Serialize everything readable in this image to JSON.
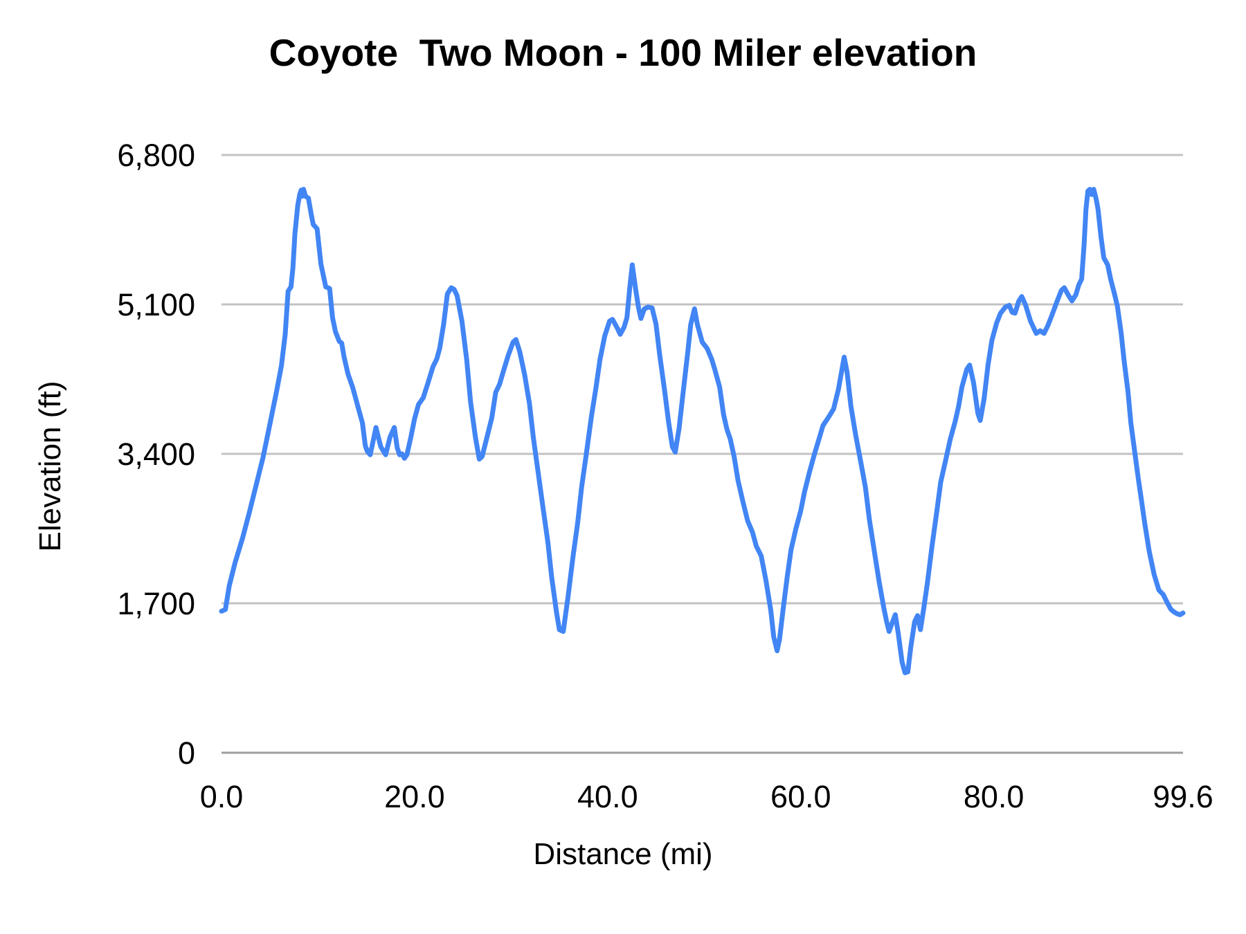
{
  "chart": {
    "colors": {
      "line": "#4285f4",
      "gridline": "#c2c2c2",
      "baseline": "#9e9e9e",
      "text": "#000000",
      "background": "#ffffff"
    }
  },
  "chart_data": {
    "type": "line",
    "title": "Coyote  Two Moon - 100 Miler elevation",
    "xlabel": "Distance (mi)",
    "ylabel": "Elevation (ft)",
    "xlim": [
      0,
      99.6
    ],
    "ylim": [
      0,
      6800
    ],
    "grid": "horizontal",
    "legend": "none",
    "x_ticks": [
      0,
      20,
      40,
      60,
      80,
      99.6
    ],
    "x_tick_labels": [
      "0.0",
      "20.0",
      "40.0",
      "60.0",
      "80.0",
      "99.6"
    ],
    "y_ticks": [
      0,
      1700,
      3400,
      5100,
      6800
    ],
    "y_tick_labels": [
      "0",
      "1,700",
      "3,400",
      "5,100",
      "6,800"
    ],
    "series": [
      {
        "name": "Elevation",
        "color": "#4285f4",
        "points": [
          [
            0,
            1610
          ],
          [
            0.4,
            1630
          ],
          [
            0.8,
            1900
          ],
          [
            1.4,
            2160
          ],
          [
            2.2,
            2450
          ],
          [
            2.9,
            2740
          ],
          [
            3.6,
            3050
          ],
          [
            4.3,
            3360
          ],
          [
            5.0,
            3730
          ],
          [
            5.7,
            4110
          ],
          [
            6.2,
            4400
          ],
          [
            6.6,
            4760
          ],
          [
            6.9,
            5250
          ],
          [
            7.2,
            5300
          ],
          [
            7.4,
            5520
          ],
          [
            7.6,
            5900
          ],
          [
            7.9,
            6230
          ],
          [
            8.1,
            6350
          ],
          [
            8.25,
            6400
          ],
          [
            8.35,
            6330
          ],
          [
            8.5,
            6410
          ],
          [
            8.7,
            6330
          ],
          [
            9.0,
            6310
          ],
          [
            9.3,
            6120
          ],
          [
            9.5,
            6010
          ],
          [
            9.9,
            5960
          ],
          [
            10.3,
            5560
          ],
          [
            10.8,
            5300
          ],
          [
            11.2,
            5280
          ],
          [
            11.5,
            4950
          ],
          [
            11.8,
            4790
          ],
          [
            12.2,
            4680
          ],
          [
            12.45,
            4660
          ],
          [
            12.7,
            4500
          ],
          [
            13.1,
            4310
          ],
          [
            13.6,
            4150
          ],
          [
            14.1,
            3950
          ],
          [
            14.6,
            3750
          ],
          [
            14.9,
            3490
          ],
          [
            15.1,
            3430
          ],
          [
            15.4,
            3390
          ],
          [
            15.7,
            3540
          ],
          [
            16.0,
            3700
          ],
          [
            16.5,
            3480
          ],
          [
            17.0,
            3390
          ],
          [
            17.45,
            3590
          ],
          [
            17.9,
            3700
          ],
          [
            18.2,
            3470
          ],
          [
            18.45,
            3390
          ],
          [
            18.7,
            3400
          ],
          [
            18.95,
            3350
          ],
          [
            19.2,
            3390
          ],
          [
            19.6,
            3580
          ],
          [
            20.0,
            3800
          ],
          [
            20.4,
            3960
          ],
          [
            20.9,
            4040
          ],
          [
            21.4,
            4210
          ],
          [
            21.9,
            4390
          ],
          [
            22.3,
            4480
          ],
          [
            22.6,
            4600
          ],
          [
            23.0,
            4870
          ],
          [
            23.4,
            5220
          ],
          [
            23.8,
            5290
          ],
          [
            24.1,
            5270
          ],
          [
            24.4,
            5200
          ],
          [
            24.9,
            4910
          ],
          [
            25.4,
            4470
          ],
          [
            25.8,
            3990
          ],
          [
            26.3,
            3590
          ],
          [
            26.7,
            3340
          ],
          [
            27.0,
            3370
          ],
          [
            27.5,
            3590
          ],
          [
            28.0,
            3810
          ],
          [
            28.4,
            4100
          ],
          [
            28.8,
            4190
          ],
          [
            29.2,
            4340
          ],
          [
            29.7,
            4520
          ],
          [
            30.2,
            4670
          ],
          [
            30.5,
            4700
          ],
          [
            30.9,
            4560
          ],
          [
            31.4,
            4300
          ],
          [
            31.9,
            3970
          ],
          [
            32.3,
            3590
          ],
          [
            32.8,
            3190
          ],
          [
            33.3,
            2790
          ],
          [
            33.8,
            2400
          ],
          [
            34.2,
            2000
          ],
          [
            34.7,
            1600
          ],
          [
            35.0,
            1400
          ],
          [
            35.4,
            1380
          ],
          [
            35.9,
            1780
          ],
          [
            36.4,
            2220
          ],
          [
            36.9,
            2620
          ],
          [
            37.3,
            3020
          ],
          [
            37.8,
            3410
          ],
          [
            38.3,
            3810
          ],
          [
            38.8,
            4160
          ],
          [
            39.2,
            4470
          ],
          [
            39.7,
            4740
          ],
          [
            40.2,
            4910
          ],
          [
            40.5,
            4930
          ],
          [
            41.0,
            4830
          ],
          [
            41.3,
            4760
          ],
          [
            41.7,
            4840
          ],
          [
            42.0,
            4950
          ],
          [
            42.3,
            5300
          ],
          [
            42.55,
            5550
          ],
          [
            42.9,
            5270
          ],
          [
            43.2,
            5060
          ],
          [
            43.45,
            4940
          ],
          [
            43.8,
            5050
          ],
          [
            44.2,
            5070
          ],
          [
            44.6,
            5060
          ],
          [
            45.0,
            4880
          ],
          [
            45.4,
            4520
          ],
          [
            45.9,
            4120
          ],
          [
            46.3,
            3770
          ],
          [
            46.7,
            3480
          ],
          [
            47.0,
            3420
          ],
          [
            47.4,
            3690
          ],
          [
            47.8,
            4080
          ],
          [
            48.3,
            4560
          ],
          [
            48.6,
            4870
          ],
          [
            49.0,
            5050
          ],
          [
            49.3,
            4870
          ],
          [
            49.8,
            4670
          ],
          [
            50.3,
            4600
          ],
          [
            50.8,
            4470
          ],
          [
            51.1,
            4360
          ],
          [
            51.6,
            4160
          ],
          [
            52.0,
            3850
          ],
          [
            52.35,
            3680
          ],
          [
            52.7,
            3570
          ],
          [
            53.1,
            3370
          ],
          [
            53.5,
            3100
          ],
          [
            54.0,
            2860
          ],
          [
            54.5,
            2640
          ],
          [
            55.0,
            2510
          ],
          [
            55.4,
            2350
          ],
          [
            55.9,
            2240
          ],
          [
            56.4,
            1960
          ],
          [
            56.9,
            1620
          ],
          [
            57.2,
            1320
          ],
          [
            57.55,
            1160
          ],
          [
            57.8,
            1290
          ],
          [
            58.2,
            1650
          ],
          [
            58.6,
            2000
          ],
          [
            59.0,
            2310
          ],
          [
            59.5,
            2550
          ],
          [
            60.0,
            2750
          ],
          [
            60.4,
            2970
          ],
          [
            60.9,
            3190
          ],
          [
            61.4,
            3390
          ],
          [
            61.9,
            3570
          ],
          [
            62.3,
            3720
          ],
          [
            62.9,
            3820
          ],
          [
            63.4,
            3910
          ],
          [
            63.9,
            4130
          ],
          [
            64.5,
            4500
          ],
          [
            64.8,
            4330
          ],
          [
            65.2,
            3940
          ],
          [
            65.7,
            3610
          ],
          [
            66.2,
            3320
          ],
          [
            66.7,
            3020
          ],
          [
            67.1,
            2660
          ],
          [
            67.6,
            2310
          ],
          [
            68.1,
            1960
          ],
          [
            68.6,
            1650
          ],
          [
            68.9,
            1490
          ],
          [
            69.15,
            1380
          ],
          [
            69.45,
            1470
          ],
          [
            69.8,
            1570
          ],
          [
            70.1,
            1360
          ],
          [
            70.5,
            1030
          ],
          [
            70.8,
            910
          ],
          [
            71.1,
            920
          ],
          [
            71.4,
            1200
          ],
          [
            71.8,
            1490
          ],
          [
            72.1,
            1560
          ],
          [
            72.4,
            1400
          ],
          [
            72.75,
            1650
          ],
          [
            73.1,
            1910
          ],
          [
            73.6,
            2350
          ],
          [
            74.1,
            2750
          ],
          [
            74.5,
            3080
          ],
          [
            75.0,
            3320
          ],
          [
            75.5,
            3570
          ],
          [
            76.0,
            3770
          ],
          [
            76.35,
            3940
          ],
          [
            76.7,
            4160
          ],
          [
            77.2,
            4360
          ],
          [
            77.5,
            4410
          ],
          [
            77.9,
            4210
          ],
          [
            78.35,
            3860
          ],
          [
            78.6,
            3780
          ],
          [
            79.0,
            4030
          ],
          [
            79.4,
            4410
          ],
          [
            79.8,
            4690
          ],
          [
            80.3,
            4890
          ],
          [
            80.7,
            5000
          ],
          [
            81.2,
            5070
          ],
          [
            81.6,
            5090
          ],
          [
            81.9,
            5010
          ],
          [
            82.2,
            5000
          ],
          [
            82.6,
            5140
          ],
          [
            82.9,
            5190
          ],
          [
            83.3,
            5090
          ],
          [
            83.8,
            4910
          ],
          [
            84.4,
            4770
          ],
          [
            84.8,
            4800
          ],
          [
            85.2,
            4770
          ],
          [
            85.6,
            4860
          ],
          [
            86.0,
            4970
          ],
          [
            86.5,
            5120
          ],
          [
            87.0,
            5260
          ],
          [
            87.3,
            5290
          ],
          [
            87.7,
            5210
          ],
          [
            88.1,
            5140
          ],
          [
            88.5,
            5210
          ],
          [
            88.8,
            5320
          ],
          [
            89.1,
            5390
          ],
          [
            89.35,
            5780
          ],
          [
            89.55,
            6180
          ],
          [
            89.75,
            6390
          ],
          [
            89.95,
            6410
          ],
          [
            90.15,
            6350
          ],
          [
            90.35,
            6410
          ],
          [
            90.6,
            6300
          ],
          [
            90.8,
            6180
          ],
          [
            91.1,
            5870
          ],
          [
            91.4,
            5630
          ],
          [
            91.8,
            5550
          ],
          [
            92.1,
            5390
          ],
          [
            92.5,
            5220
          ],
          [
            92.8,
            5080
          ],
          [
            93.2,
            4770
          ],
          [
            93.5,
            4460
          ],
          [
            93.9,
            4110
          ],
          [
            94.2,
            3750
          ],
          [
            94.6,
            3420
          ],
          [
            94.95,
            3130
          ],
          [
            95.3,
            2870
          ],
          [
            95.65,
            2600
          ],
          [
            96.1,
            2290
          ],
          [
            96.6,
            2030
          ],
          [
            97.1,
            1850
          ],
          [
            97.55,
            1800
          ],
          [
            98.0,
            1700
          ],
          [
            98.35,
            1630
          ],
          [
            98.7,
            1600
          ],
          [
            99.0,
            1580
          ],
          [
            99.3,
            1570
          ],
          [
            99.6,
            1590
          ]
        ]
      }
    ]
  }
}
